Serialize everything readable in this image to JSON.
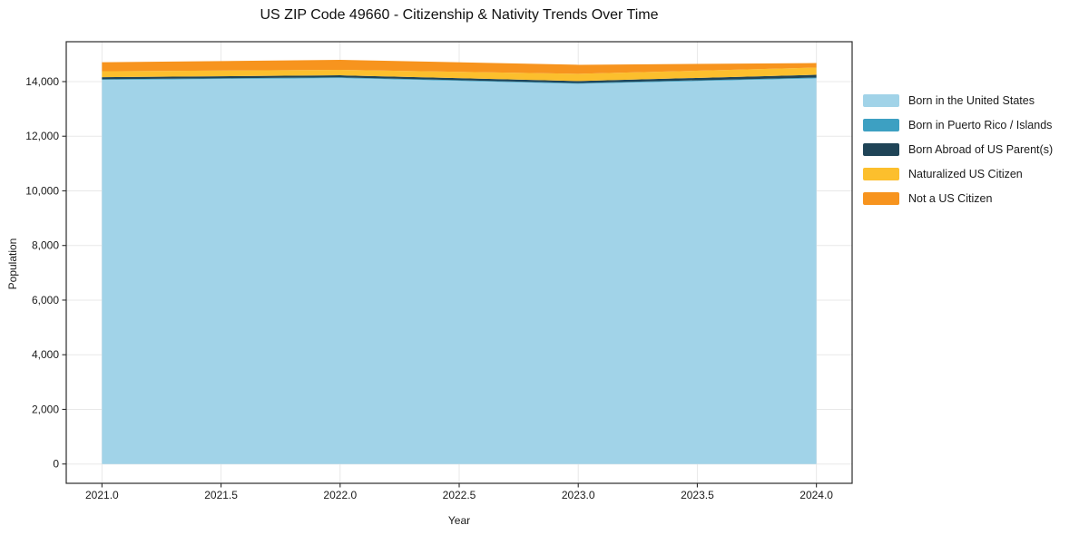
{
  "page": {
    "background": "#ffffff"
  },
  "chart_data": {
    "type": "area",
    "stacked": true,
    "title": "US ZIP Code 49660 - Citizenship & Nativity Trends Over Time",
    "xlabel": "Year",
    "ylabel": "Population",
    "x": [
      2021,
      2022,
      2023,
      2024
    ],
    "series": [
      {
        "name": "Born in the United States",
        "color": "#a1d3e8",
        "values": [
          14060,
          14130,
          13920,
          14120
        ]
      },
      {
        "name": "Born in Puerto Rico / Islands",
        "color": "#3da0c2",
        "values": [
          25,
          25,
          25,
          30
        ]
      },
      {
        "name": "Born Abroad of US Parent(s)",
        "color": "#1f4457",
        "values": [
          75,
          75,
          75,
          100
        ]
      },
      {
        "name": "Naturalized US Citizen",
        "color": "#fcbf2d",
        "values": [
          220,
          200,
          265,
          265
        ]
      },
      {
        "name": "Not a US Citizen",
        "color": "#f7941e",
        "values": [
          330,
          365,
          330,
          165
        ]
      }
    ],
    "totals": [
      14710,
      14795,
      14615,
      14680
    ],
    "xlim": [
      2020.85,
      2024.15
    ],
    "ylim": [
      -707,
      15460
    ],
    "xticks": [
      2021.0,
      2021.5,
      2022.0,
      2022.5,
      2023.0,
      2023.5,
      2024.0
    ],
    "xtick_labels": [
      "2021.0",
      "2021.5",
      "2022.0",
      "2022.5",
      "2023.0",
      "2023.5",
      "2024.0"
    ],
    "yticks": [
      0,
      2000,
      4000,
      6000,
      8000,
      10000,
      12000,
      14000
    ],
    "ytick_labels": [
      "0",
      "2,000",
      "4,000",
      "6,000",
      "8,000",
      "10,000",
      "12,000",
      "14,000"
    ],
    "grid": true,
    "grid_color": "#e8e8e8",
    "frame_color": "#2b2b2b",
    "tick_color": "#2b2b2b",
    "tick_label_color": "#1a1a1a",
    "legend": {
      "position": "right-of-plot",
      "frame": false
    }
  }
}
